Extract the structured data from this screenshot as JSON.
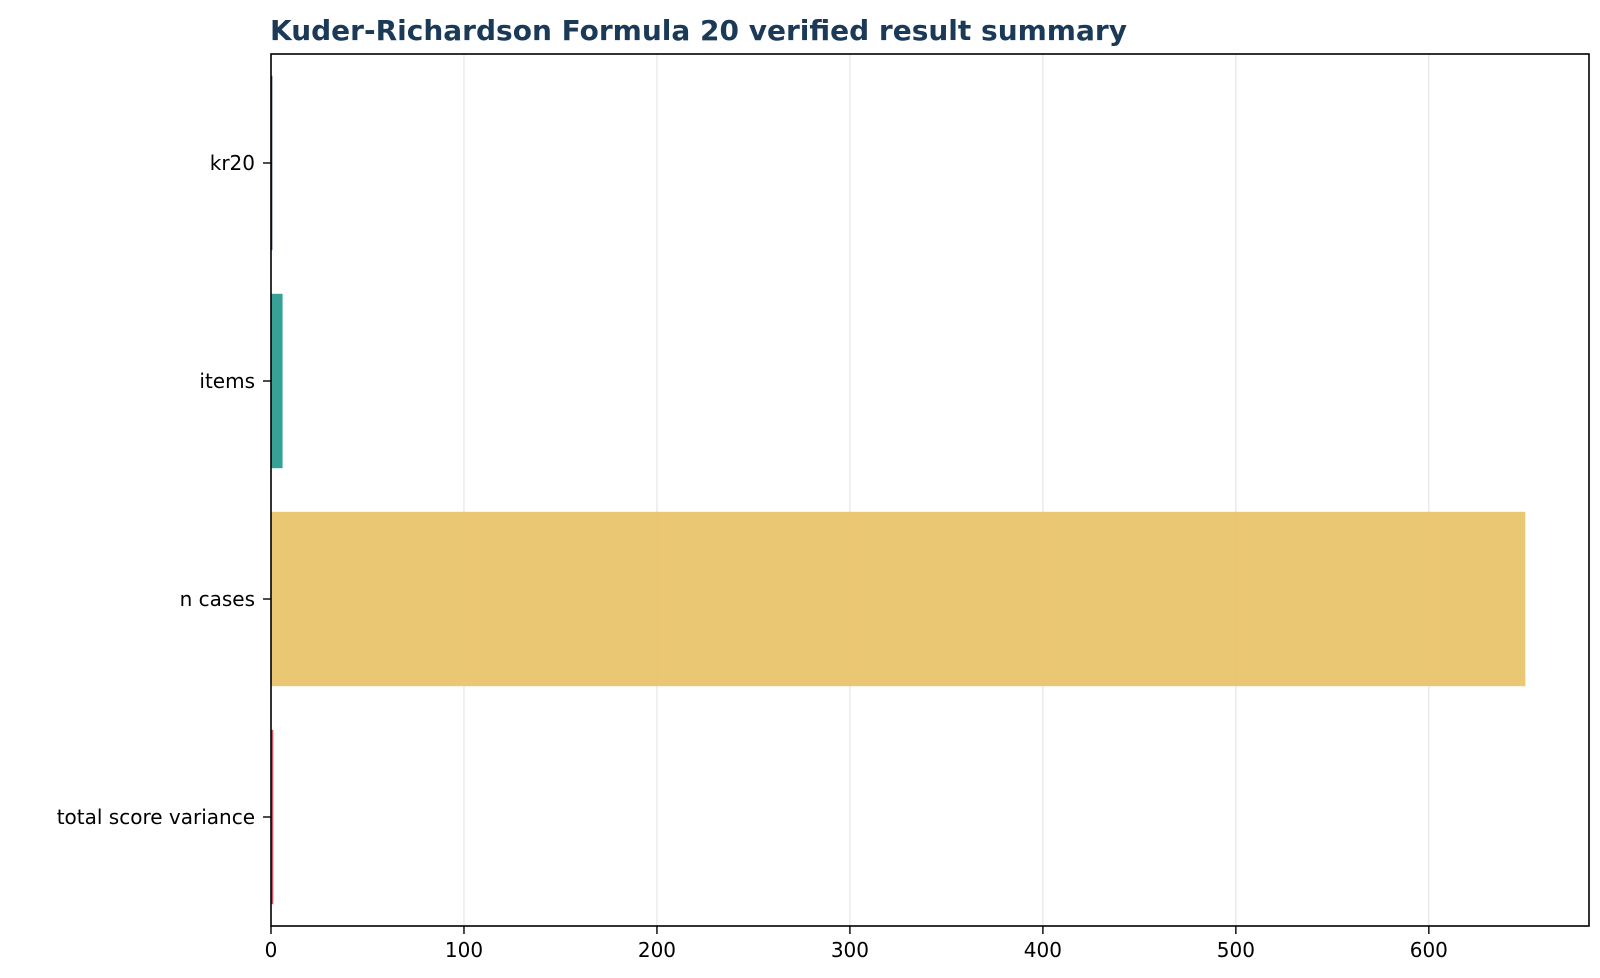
{
  "chart_data": {
    "type": "bar",
    "orientation": "horizontal",
    "title": "Kuder-Richardson Formula 20 verified result summary",
    "xlabel": "",
    "ylabel": "",
    "categories": [
      "kr20",
      "items",
      "n cases",
      "total score variance"
    ],
    "values": [
      0.7,
      6,
      650,
      1.2
    ],
    "colors": [
      "#1f3b57",
      "#2a9d8f",
      "#e9c46a",
      "#d1495b"
    ],
    "xlim": [
      0,
      683
    ],
    "xticks": [
      0,
      100,
      200,
      300,
      400,
      500,
      600
    ],
    "grid": "vertical",
    "legend": "none",
    "title_color": "#1b3a57"
  }
}
